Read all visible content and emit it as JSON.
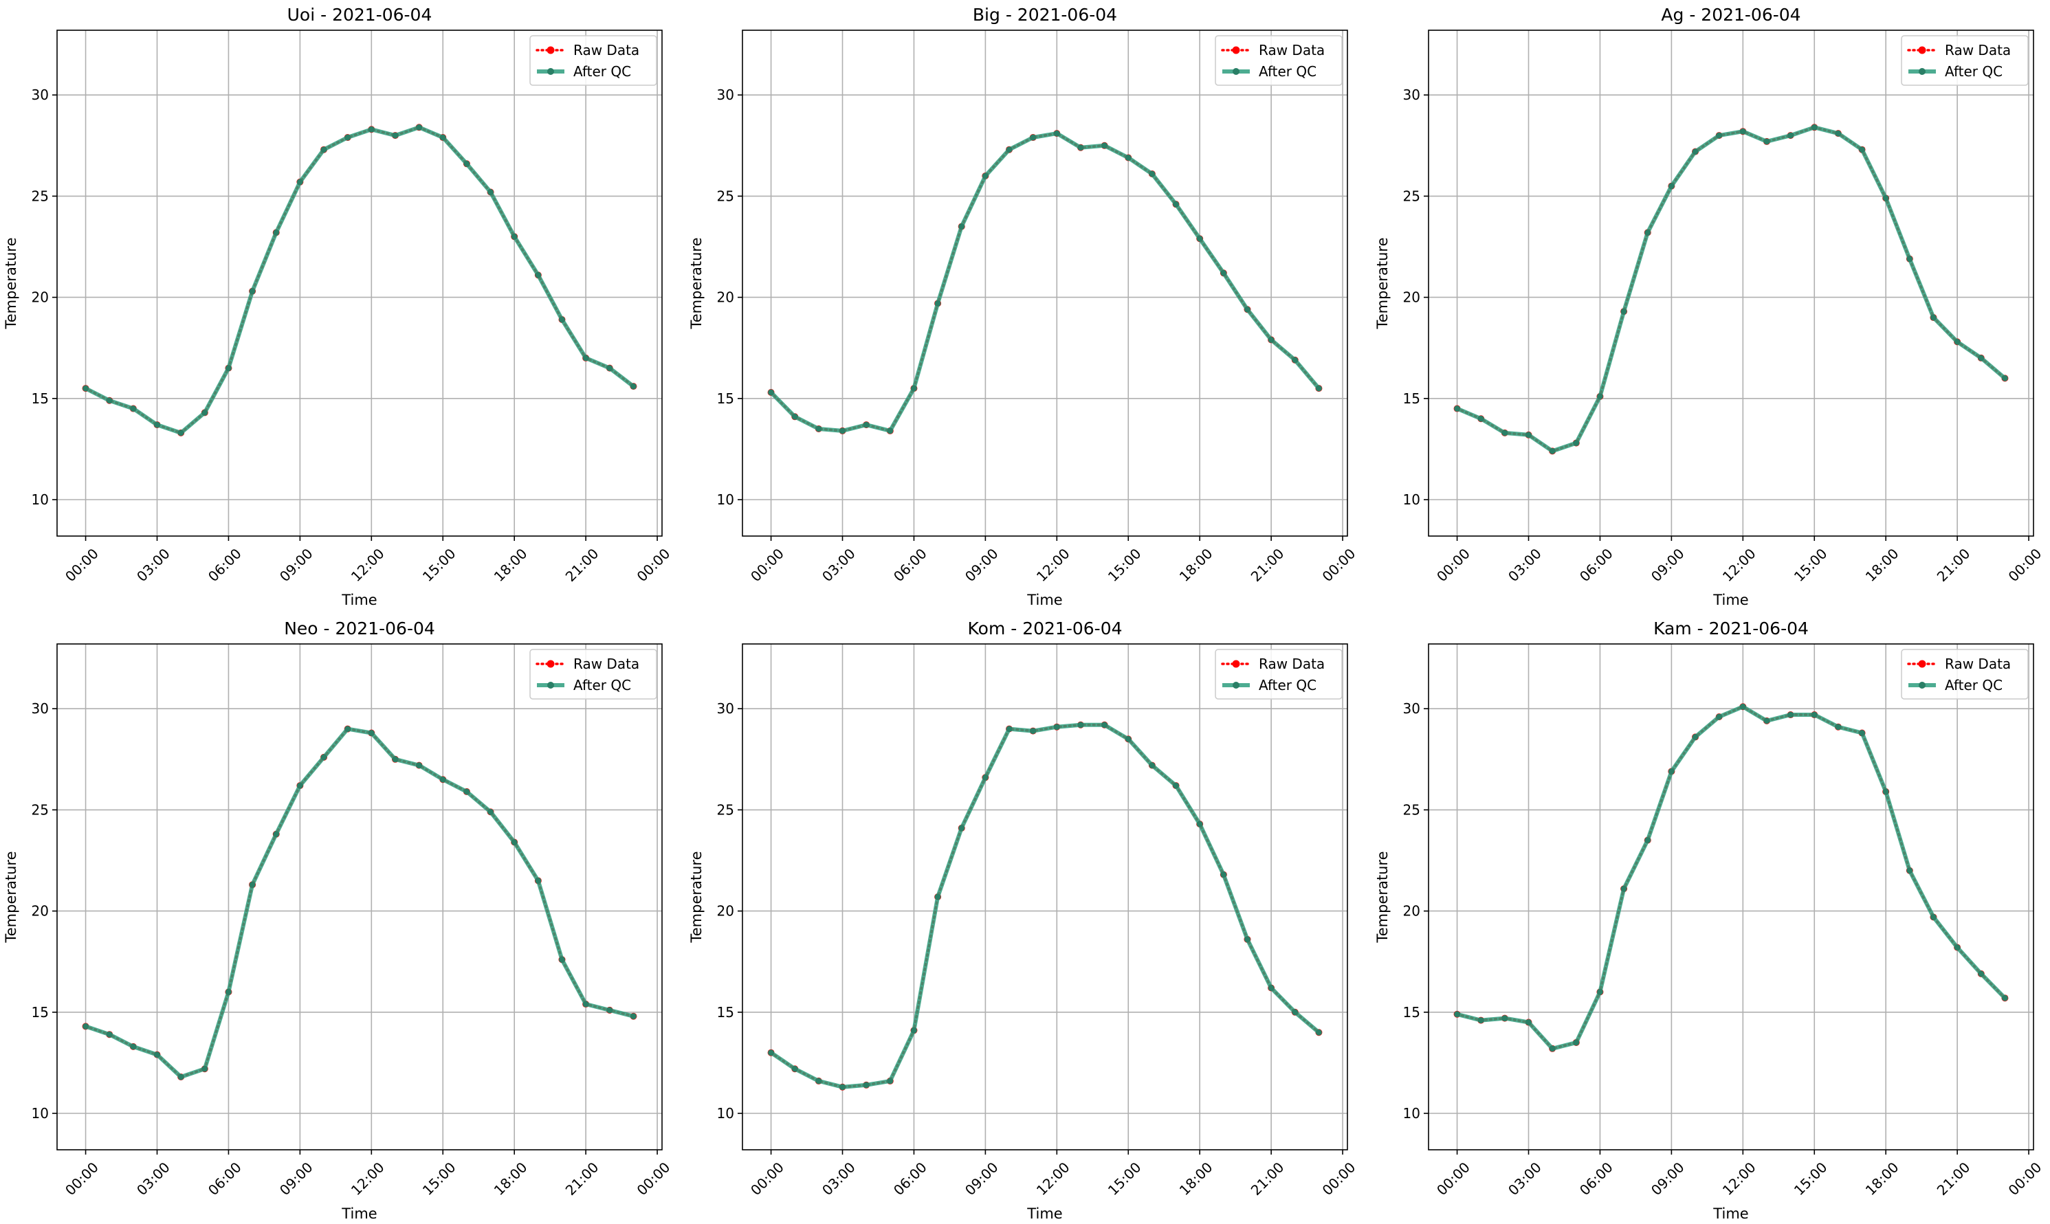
{
  "chart_data": [
    {
      "type": "line",
      "title": "Uoi - 2021-06-04",
      "xlabel": "Time",
      "ylabel": "Temperature",
      "x": [
        "00:00",
        "01:00",
        "02:00",
        "03:00",
        "04:00",
        "05:00",
        "06:00",
        "07:00",
        "08:00",
        "09:00",
        "10:00",
        "11:00",
        "12:00",
        "13:00",
        "14:00",
        "15:00",
        "16:00",
        "17:00",
        "18:00",
        "19:00",
        "20:00",
        "21:00",
        "22:00",
        "23:00"
      ],
      "xticks": [
        "00:00",
        "03:00",
        "06:00",
        "09:00",
        "12:00",
        "15:00",
        "18:00",
        "21:00",
        "00:00"
      ],
      "yticks": [
        10,
        15,
        20,
        25,
        30
      ],
      "ylim": [
        8.2,
        33.2
      ],
      "grid": true,
      "legend_position": "top-right",
      "series": [
        {
          "name": "Raw Data",
          "color": "#ff0000",
          "style": "dotted",
          "values": [
            15.5,
            14.9,
            14.5,
            13.7,
            13.3,
            14.3,
            16.5,
            20.3,
            23.2,
            25.7,
            27.3,
            27.9,
            28.3,
            28.0,
            28.4,
            27.9,
            26.6,
            25.2,
            23.0,
            21.1,
            18.9,
            17.0,
            16.5,
            15.6
          ]
        },
        {
          "name": "After QC",
          "color": "#2e9e7e",
          "style": "solid",
          "values": [
            15.5,
            14.9,
            14.5,
            13.7,
            13.3,
            14.3,
            16.5,
            20.3,
            23.2,
            25.7,
            27.3,
            27.9,
            28.3,
            28.0,
            28.4,
            27.9,
            26.6,
            25.2,
            23.0,
            21.1,
            18.9,
            17.0,
            16.5,
            15.6
          ]
        }
      ]
    },
    {
      "type": "line",
      "title": "Big - 2021-06-04",
      "xlabel": "Time",
      "ylabel": "Temperature",
      "x": [
        "00:00",
        "01:00",
        "02:00",
        "03:00",
        "04:00",
        "05:00",
        "06:00",
        "07:00",
        "08:00",
        "09:00",
        "10:00",
        "11:00",
        "12:00",
        "13:00",
        "14:00",
        "15:00",
        "16:00",
        "17:00",
        "18:00",
        "19:00",
        "20:00",
        "21:00",
        "22:00",
        "23:00"
      ],
      "xticks": [
        "00:00",
        "03:00",
        "06:00",
        "09:00",
        "12:00",
        "15:00",
        "18:00",
        "21:00",
        "00:00"
      ],
      "yticks": [
        10,
        15,
        20,
        25,
        30
      ],
      "ylim": [
        8.2,
        33.2
      ],
      "grid": true,
      "legend_position": "top-right",
      "series": [
        {
          "name": "Raw Data",
          "color": "#ff0000",
          "style": "dotted",
          "values": [
            15.3,
            14.1,
            13.5,
            13.4,
            13.7,
            13.4,
            15.5,
            19.7,
            23.5,
            26.0,
            27.3,
            27.9,
            28.1,
            27.4,
            27.5,
            26.9,
            26.1,
            24.6,
            22.9,
            21.2,
            19.4,
            17.9,
            16.9,
            15.5
          ]
        },
        {
          "name": "After QC",
          "color": "#2e9e7e",
          "style": "solid",
          "values": [
            15.3,
            14.1,
            13.5,
            13.4,
            13.7,
            13.4,
            15.5,
            19.7,
            23.5,
            26.0,
            27.3,
            27.9,
            28.1,
            27.4,
            27.5,
            26.9,
            26.1,
            24.6,
            22.9,
            21.2,
            19.4,
            17.9,
            16.9,
            15.5
          ]
        }
      ]
    },
    {
      "type": "line",
      "title": "Ag - 2021-06-04",
      "xlabel": "Time",
      "ylabel": "Temperature",
      "x": [
        "00:00",
        "01:00",
        "02:00",
        "03:00",
        "04:00",
        "05:00",
        "06:00",
        "07:00",
        "08:00",
        "09:00",
        "10:00",
        "11:00",
        "12:00",
        "13:00",
        "14:00",
        "15:00",
        "16:00",
        "17:00",
        "18:00",
        "19:00",
        "20:00",
        "21:00",
        "22:00",
        "23:00"
      ],
      "xticks": [
        "00:00",
        "03:00",
        "06:00",
        "09:00",
        "12:00",
        "15:00",
        "18:00",
        "21:00",
        "00:00"
      ],
      "yticks": [
        10,
        15,
        20,
        25,
        30
      ],
      "ylim": [
        8.2,
        33.2
      ],
      "grid": true,
      "legend_position": "top-right",
      "series": [
        {
          "name": "Raw Data",
          "color": "#ff0000",
          "style": "dotted",
          "values": [
            14.5,
            14.0,
            13.3,
            13.2,
            12.4,
            12.8,
            15.1,
            19.3,
            23.2,
            25.5,
            27.2,
            28.0,
            28.2,
            27.7,
            28.0,
            28.4,
            28.1,
            27.3,
            24.9,
            21.9,
            19.0,
            17.8,
            17.0,
            16.0
          ]
        },
        {
          "name": "After QC",
          "color": "#2e9e7e",
          "style": "solid",
          "values": [
            14.5,
            14.0,
            13.3,
            13.2,
            12.4,
            12.8,
            15.1,
            19.3,
            23.2,
            25.5,
            27.2,
            28.0,
            28.2,
            27.7,
            28.0,
            28.4,
            28.1,
            27.3,
            24.9,
            21.9,
            19.0,
            17.8,
            17.0,
            16.0
          ]
        }
      ]
    },
    {
      "type": "line",
      "title": "Neo - 2021-06-04",
      "xlabel": "Time",
      "ylabel": "Temperature",
      "x": [
        "00:00",
        "01:00",
        "02:00",
        "03:00",
        "04:00",
        "05:00",
        "06:00",
        "07:00",
        "08:00",
        "09:00",
        "10:00",
        "11:00",
        "12:00",
        "13:00",
        "14:00",
        "15:00",
        "16:00",
        "17:00",
        "18:00",
        "19:00",
        "20:00",
        "21:00",
        "22:00",
        "23:00"
      ],
      "xticks": [
        "00:00",
        "03:00",
        "06:00",
        "09:00",
        "12:00",
        "15:00",
        "18:00",
        "21:00",
        "00:00"
      ],
      "yticks": [
        10,
        15,
        20,
        25,
        30
      ],
      "ylim": [
        8.2,
        33.2
      ],
      "grid": true,
      "legend_position": "top-right",
      "series": [
        {
          "name": "Raw Data",
          "color": "#ff0000",
          "style": "dotted",
          "values": [
            14.3,
            13.9,
            13.3,
            12.9,
            11.8,
            12.2,
            16.0,
            21.3,
            23.8,
            26.2,
            27.6,
            29.0,
            28.8,
            27.5,
            27.2,
            26.5,
            25.9,
            24.9,
            23.4,
            21.5,
            17.6,
            15.4,
            15.1,
            14.8
          ]
        },
        {
          "name": "After QC",
          "color": "#2e9e7e",
          "style": "solid",
          "values": [
            14.3,
            13.9,
            13.3,
            12.9,
            11.8,
            12.2,
            16.0,
            21.3,
            23.8,
            26.2,
            27.6,
            29.0,
            28.8,
            27.5,
            27.2,
            26.5,
            25.9,
            24.9,
            23.4,
            21.5,
            17.6,
            15.4,
            15.1,
            14.8
          ]
        }
      ]
    },
    {
      "type": "line",
      "title": "Kom - 2021-06-04",
      "xlabel": "Time",
      "ylabel": "Temperature",
      "x": [
        "00:00",
        "01:00",
        "02:00",
        "03:00",
        "04:00",
        "05:00",
        "06:00",
        "07:00",
        "08:00",
        "09:00",
        "10:00",
        "11:00",
        "12:00",
        "13:00",
        "14:00",
        "15:00",
        "16:00",
        "17:00",
        "18:00",
        "19:00",
        "20:00",
        "21:00",
        "22:00",
        "23:00"
      ],
      "xticks": [
        "00:00",
        "03:00",
        "06:00",
        "09:00",
        "12:00",
        "15:00",
        "18:00",
        "21:00",
        "00:00"
      ],
      "yticks": [
        10,
        15,
        20,
        25,
        30
      ],
      "ylim": [
        8.2,
        33.2
      ],
      "grid": true,
      "legend_position": "top-right",
      "series": [
        {
          "name": "Raw Data",
          "color": "#ff0000",
          "style": "dotted",
          "values": [
            13.0,
            12.2,
            11.6,
            11.3,
            11.4,
            11.6,
            14.1,
            20.7,
            24.1,
            26.6,
            29.0,
            28.9,
            29.1,
            29.2,
            29.2,
            28.5,
            27.2,
            26.2,
            24.3,
            21.8,
            18.6,
            16.2,
            15.0,
            14.0
          ]
        },
        {
          "name": "After QC",
          "color": "#2e9e7e",
          "style": "solid",
          "values": [
            13.0,
            12.2,
            11.6,
            11.3,
            11.4,
            11.6,
            14.1,
            20.7,
            24.1,
            26.6,
            29.0,
            28.9,
            29.1,
            29.2,
            29.2,
            28.5,
            27.2,
            26.2,
            24.3,
            21.8,
            18.6,
            16.2,
            15.0,
            14.0
          ]
        }
      ]
    },
    {
      "type": "line",
      "title": "Kam - 2021-06-04",
      "xlabel": "Time",
      "ylabel": "Temperature",
      "x": [
        "00:00",
        "01:00",
        "02:00",
        "03:00",
        "04:00",
        "05:00",
        "06:00",
        "07:00",
        "08:00",
        "09:00",
        "10:00",
        "11:00",
        "12:00",
        "13:00",
        "14:00",
        "15:00",
        "16:00",
        "17:00",
        "18:00",
        "19:00",
        "20:00",
        "21:00",
        "22:00",
        "23:00"
      ],
      "xticks": [
        "00:00",
        "03:00",
        "06:00",
        "09:00",
        "12:00",
        "15:00",
        "18:00",
        "21:00",
        "00:00"
      ],
      "yticks": [
        10,
        15,
        20,
        25,
        30
      ],
      "ylim": [
        8.2,
        33.2
      ],
      "grid": true,
      "legend_position": "top-right",
      "series": [
        {
          "name": "Raw Data",
          "color": "#ff0000",
          "style": "dotted",
          "values": [
            14.9,
            14.6,
            14.7,
            14.5,
            13.2,
            13.5,
            16.0,
            21.1,
            23.5,
            26.9,
            28.6,
            29.6,
            30.1,
            29.4,
            29.7,
            29.7,
            29.1,
            28.8,
            25.9,
            22.0,
            19.7,
            18.2,
            16.9,
            15.7
          ]
        },
        {
          "name": "After QC",
          "color": "#2e9e7e",
          "style": "solid",
          "values": [
            14.9,
            14.6,
            14.7,
            14.5,
            13.2,
            13.5,
            16.0,
            21.1,
            23.5,
            26.9,
            28.6,
            29.6,
            30.1,
            29.4,
            29.7,
            29.7,
            29.1,
            28.8,
            25.9,
            22.0,
            19.7,
            18.2,
            16.9,
            15.7
          ]
        }
      ]
    }
  ]
}
